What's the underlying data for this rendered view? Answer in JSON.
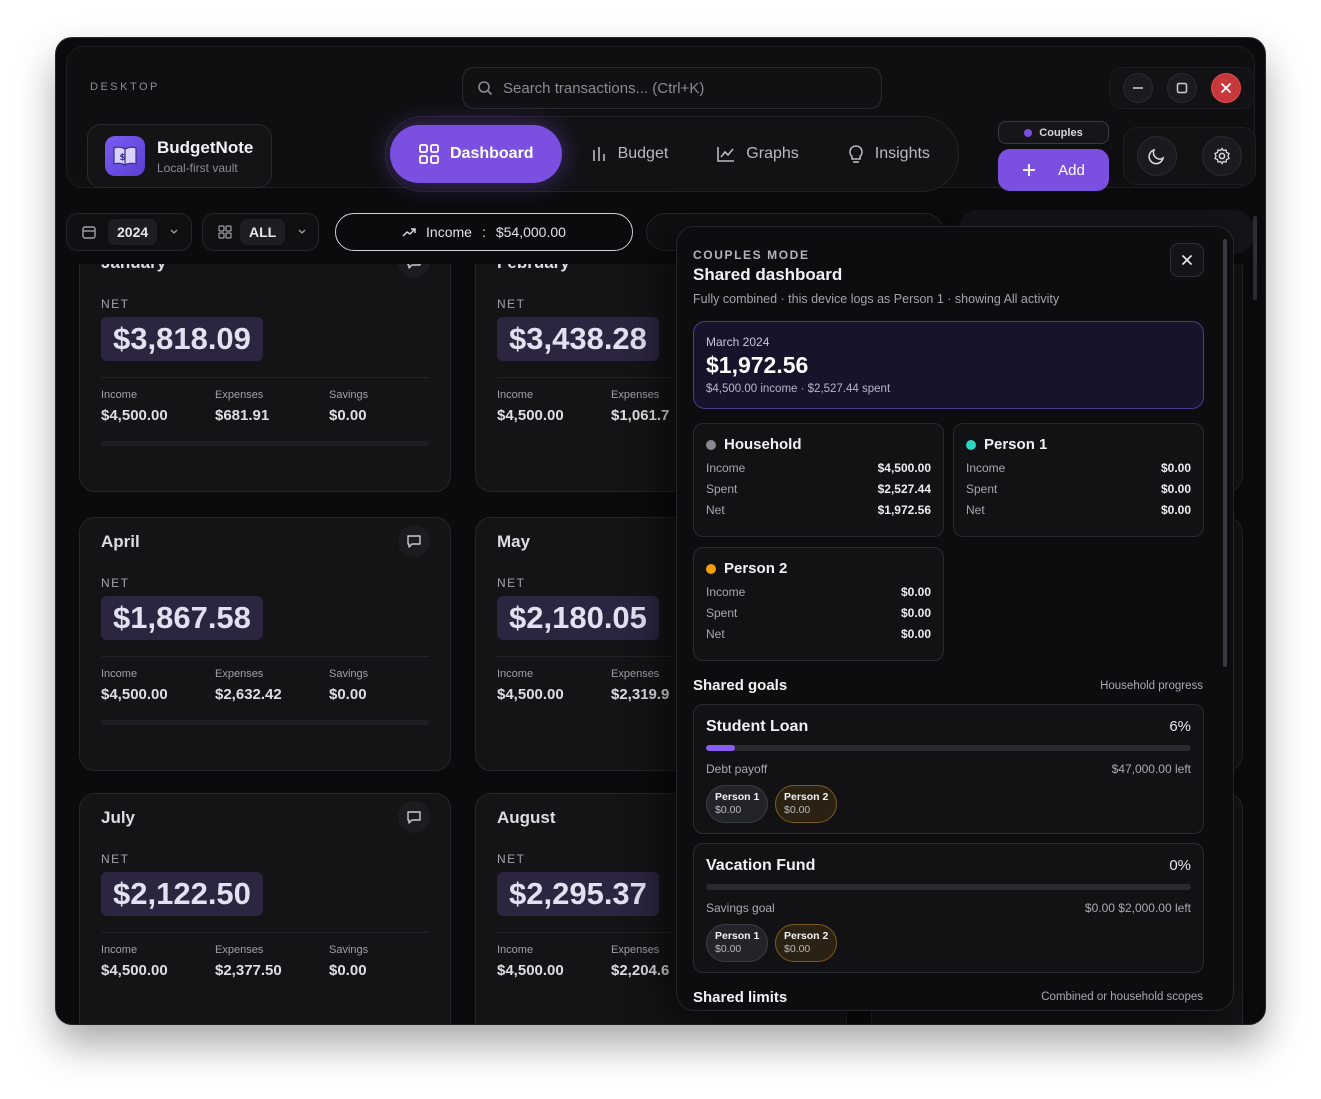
{
  "app": {
    "section_label": "DESKTOP",
    "brand_name": "BudgetNote",
    "brand_sub": "Local-first vault"
  },
  "search": {
    "placeholder": "Search transactions... (Ctrl+K)"
  },
  "nav": [
    {
      "label": "Dashboard",
      "icon": "grid-icon",
      "active": true
    },
    {
      "label": "Budget",
      "icon": "bars-icon",
      "active": false
    },
    {
      "label": "Graphs",
      "icon": "line-chart-icon",
      "active": false
    },
    {
      "label": "Insights",
      "icon": "lightbulb-icon",
      "active": false
    }
  ],
  "mode_badge": "Couples",
  "add_label": "Add",
  "filters": {
    "year": "2024",
    "scope": "ALL",
    "income_label": "Income",
    "income_sep": ":",
    "income_value": "$54,000.00"
  },
  "months": [
    {
      "name": "January",
      "net": "$3,818.09",
      "income": "$4,500.00",
      "expenses": "$681.91",
      "savings": "$0.00"
    },
    {
      "name": "February",
      "net": "$3,438.28",
      "income": "$4,500.00",
      "expenses": "$1,061.7",
      "savings": ""
    },
    {
      "name": "April",
      "net": "$1,867.58",
      "income": "$4,500.00",
      "expenses": "$2,632.42",
      "savings": "$0.00"
    },
    {
      "name": "May",
      "net": "$2,180.05",
      "income": "$4,500.00",
      "expenses": "$2,319.9",
      "savings": ""
    },
    {
      "name": "July",
      "net": "$2,122.50",
      "income": "$4,500.00",
      "expenses": "$2,377.50",
      "savings": "$0.00"
    },
    {
      "name": "August",
      "net": "$2,295.37",
      "income": "$4,500.00",
      "expenses": "$2,204.6",
      "savings": ""
    }
  ],
  "card_labels": {
    "net": "NET",
    "income": "Income",
    "expenses": "Expenses",
    "savings": "Savings"
  },
  "panel": {
    "eyebrow": "COUPLES MODE",
    "title": "Shared dashboard",
    "subtitle": "Fully combined · this device logs as Person 1 · showing All activity",
    "month": {
      "label": "March 2024",
      "net": "$1,972.56",
      "detail": "$4,500.00 income · $2,527.44 spent"
    },
    "people": [
      {
        "name": "Household",
        "color": "#8a8a92",
        "income": "$4,500.00",
        "spent": "$2,527.44",
        "net": "$1,972.56"
      },
      {
        "name": "Person 1",
        "color": "#2dd4bf",
        "income": "$0.00",
        "spent": "$0.00",
        "net": "$0.00"
      },
      {
        "name": "Person 2",
        "color": "#f59e0b",
        "income": "$0.00",
        "spent": "$0.00",
        "net": "$0.00"
      }
    ],
    "row_labels": {
      "income": "Income",
      "spent": "Spent",
      "net": "Net"
    },
    "goals_title": "Shared goals",
    "goals_right": "Household progress",
    "goals": [
      {
        "name": "Student Loan",
        "pct": "6%",
        "progress": 0.06,
        "kind": "Debt payoff",
        "left": "$47,000.00 left",
        "p1_name": "Person 1",
        "p1_val": "$0.00",
        "p2_name": "Person 2",
        "p2_val": "$0.00"
      },
      {
        "name": "Vacation Fund",
        "pct": "0%",
        "progress": 0.0,
        "kind": "Savings goal",
        "left": "$0.00 $2,000.00 left",
        "p1_name": "Person 1",
        "p1_val": "$0.00",
        "p2_name": "Person 2",
        "p2_val": "$0.00"
      }
    ],
    "limits_title": "Shared limits",
    "limits_right": "Combined or household scopes"
  },
  "colors": {
    "accent": "#7b4fe0",
    "close": "#c8373b",
    "person1": "#2dd4bf",
    "person2": "#f59e0b"
  }
}
